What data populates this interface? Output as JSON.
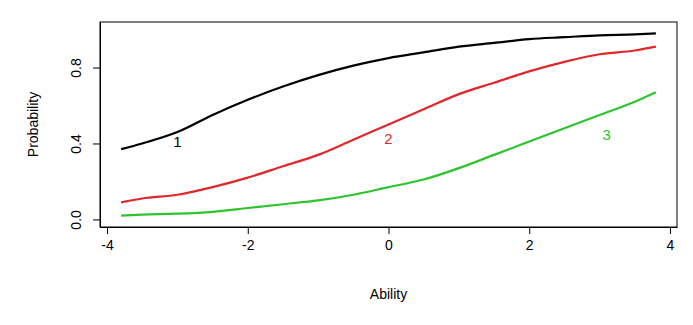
{
  "chart_data": {
    "type": "line",
    "x_label": "Ability",
    "y_label": "Probability",
    "x": [
      -3.8,
      -3.5,
      -3,
      -2.5,
      -2,
      -1.5,
      -1,
      -0.5,
      0,
      0.5,
      1,
      1.5,
      2,
      2.5,
      3,
      3.5,
      3.8
    ],
    "series": [
      {
        "name": "1",
        "color": "#000000",
        "values": [
          0.37,
          0.4,
          0.46,
          0.55,
          0.63,
          0.7,
          0.76,
          0.81,
          0.85,
          0.88,
          0.91,
          0.93,
          0.95,
          0.96,
          0.97,
          0.975,
          0.98
        ]
      },
      {
        "name": "2",
        "color": "#e0282c",
        "values": [
          0.09,
          0.11,
          0.13,
          0.17,
          0.22,
          0.28,
          0.34,
          0.42,
          0.5,
          0.58,
          0.66,
          0.72,
          0.78,
          0.83,
          0.87,
          0.89,
          0.91
        ]
      },
      {
        "name": "3",
        "color": "#2ec42e",
        "values": [
          0.02,
          0.025,
          0.03,
          0.04,
          0.06,
          0.08,
          0.1,
          0.13,
          0.17,
          0.21,
          0.27,
          0.34,
          0.41,
          0.48,
          0.55,
          0.62,
          0.67
        ]
      }
    ],
    "annotations": [
      {
        "text": "1",
        "x": -3.0,
        "y": 0.4,
        "color": "#000000"
      },
      {
        "text": "2",
        "x": 0.0,
        "y": 0.42,
        "color": "#e0282c"
      },
      {
        "text": "3",
        "x": 3.1,
        "y": 0.44,
        "color": "#2ec42e"
      }
    ],
    "xlim": [
      -4.1,
      4.1
    ],
    "xticks": [
      -4,
      -2,
      0,
      2,
      4
    ],
    "ylim": [
      -0.04,
      1.04
    ],
    "yticks": [
      {
        "value": 0,
        "label": "0.0"
      },
      0.4,
      0.8
    ],
    "grid": false
  }
}
